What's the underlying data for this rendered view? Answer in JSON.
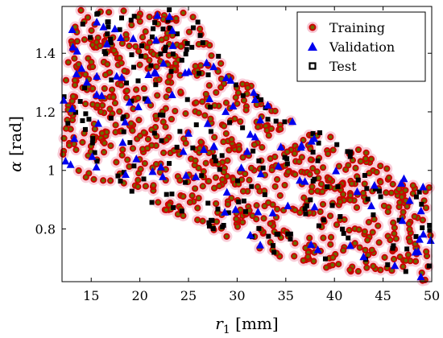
{
  "chart_data": {
    "type": "scatter",
    "title": "",
    "xlabel": "r₁ [mm]",
    "ylabel": "α [rad]",
    "xlim": [
      12,
      50
    ],
    "ylim": [
      0.62,
      1.56
    ],
    "xticks": [
      15,
      20,
      25,
      30,
      35,
      40,
      45,
      50
    ],
    "yticks": [
      0.8,
      1.0,
      1.2,
      1.4
    ],
    "ytick_labels": [
      "0.8",
      "1",
      "1.2",
      "1.4"
    ],
    "grid": false,
    "legend_position": "top-right",
    "region": {
      "upper_boundary": [
        [
          12,
          1.55
        ],
        [
          25,
          1.55
        ],
        [
          30,
          1.33
        ],
        [
          35,
          1.19
        ],
        [
          40,
          1.12
        ],
        [
          45,
          1.03
        ],
        [
          50,
          0.94
        ]
      ],
      "lower_boundary": [
        [
          12,
          1.0
        ],
        [
          20,
          0.9
        ],
        [
          25,
          0.83
        ],
        [
          30,
          0.75
        ],
        [
          35,
          0.7
        ],
        [
          40,
          0.66
        ],
        [
          45,
          0.64
        ],
        [
          50,
          0.62
        ]
      ]
    },
    "series": [
      {
        "name": "Training",
        "marker": "circle",
        "color": "#cc0000",
        "fill": "#6b6b00",
        "count": 780
      },
      {
        "name": "Validation",
        "marker": "triangle",
        "color": "#0000ee",
        "count": 110
      },
      {
        "name": "Test",
        "marker": "square",
        "color": "#000000",
        "count": 190
      }
    ]
  }
}
